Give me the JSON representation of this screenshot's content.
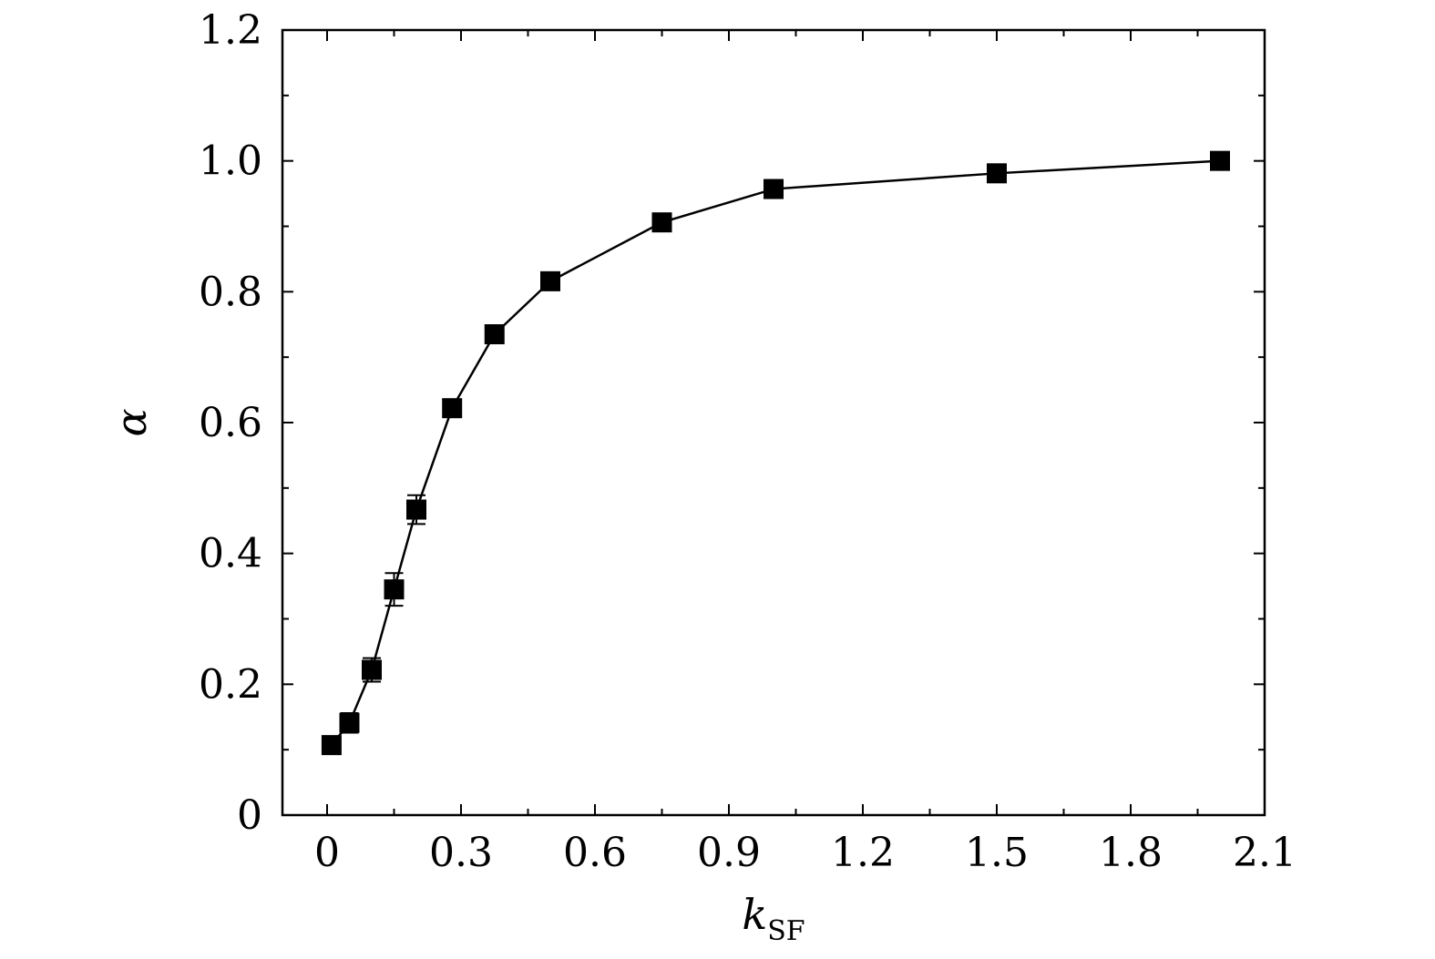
{
  "chart_data": {
    "type": "line",
    "xlabel": "k",
    "xlabel_subscript": "SF",
    "ylabel": "α",
    "xlim": [
      -0.1,
      2.1
    ],
    "ylim": [
      0,
      1.2
    ],
    "xticks": [
      0,
      0.3,
      0.6,
      0.9,
      1.2,
      1.5,
      1.8,
      2.1
    ],
    "xtick_labels": [
      "0",
      "0.3",
      "0.6",
      "0.9",
      "1.2",
      "1.5",
      "1.8",
      "2.1"
    ],
    "yticks": [
      0,
      0.2,
      0.4,
      0.6,
      0.8,
      1.0,
      1.2
    ],
    "ytick_labels": [
      "0",
      "0.2",
      "0.4",
      "0.6",
      "0.8",
      "1.0",
      "1.2"
    ],
    "grid": false,
    "marker": "square",
    "color": "#000000",
    "series": [
      {
        "x": [
          0.01,
          0.05,
          0.1,
          0.15,
          0.2,
          0.28,
          0.375,
          0.5,
          0.75,
          1.0,
          1.5,
          2.0
        ],
        "y": [
          0.107,
          0.141,
          0.222,
          0.345,
          0.467,
          0.622,
          0.735,
          0.816,
          0.906,
          0.957,
          0.981,
          1.0
        ],
        "yerr": [
          0.01,
          0.015,
          0.018,
          0.025,
          0.022,
          0.01,
          0.008,
          0.008,
          0.006,
          0.01,
          0.006,
          0.004
        ]
      }
    ]
  }
}
